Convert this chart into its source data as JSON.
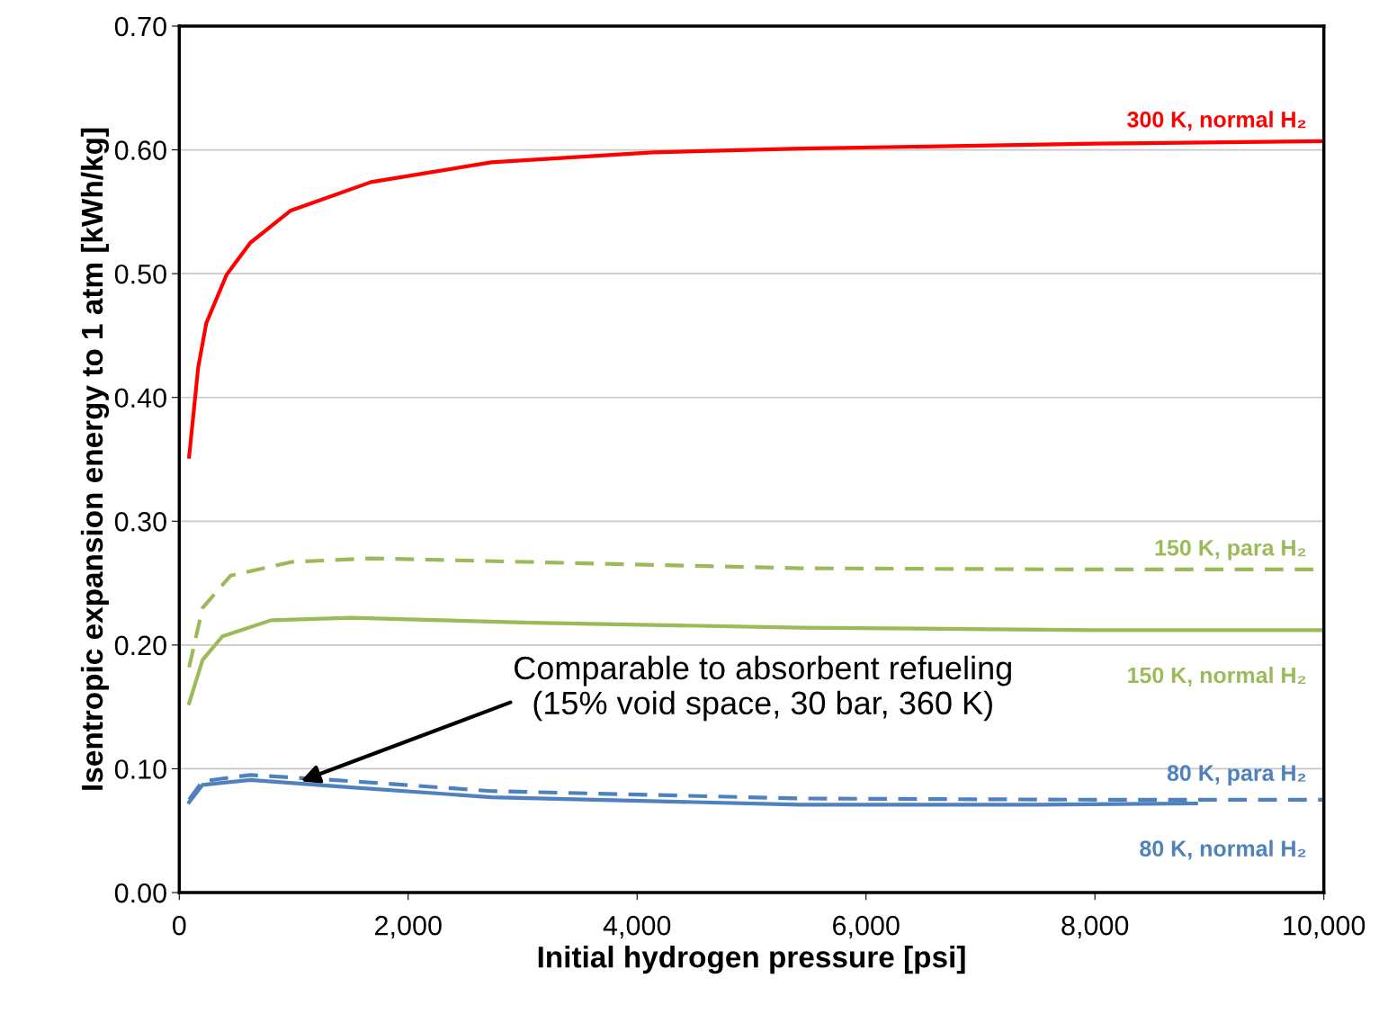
{
  "chart_data": {
    "type": "line",
    "xlabel": "Initial hydrogen pressure [psi]",
    "ylabel": "Isentropic expansion energy to 1 atm [kWh/kg]",
    "xlim": [
      0,
      10000
    ],
    "xticks": [
      {
        "value": 0,
        "label": "0"
      },
      {
        "value": 2000,
        "label": "2,000"
      },
      {
        "value": 4000,
        "label": "4,000"
      },
      {
        "value": 6000,
        "label": "6,000"
      },
      {
        "value": 8000,
        "label": "8,000"
      },
      {
        "value": 10000,
        "label": "10,000"
      }
    ],
    "ylim": [
      0,
      0.7
    ],
    "yticks": [
      {
        "value": 0,
        "label": "0.00"
      },
      {
        "value": 0.1,
        "label": "0.10"
      },
      {
        "value": 0.2,
        "label": "0.20"
      },
      {
        "value": 0.3,
        "label": "0.30"
      },
      {
        "value": 0.4,
        "label": "0.40"
      },
      {
        "value": 0.5,
        "label": "0.50"
      },
      {
        "value": 0.6,
        "label": "0.60"
      },
      {
        "value": 0.7,
        "label": "0.70"
      }
    ],
    "grid": "y",
    "legend": false,
    "marker": "none",
    "series": [
      {
        "name": "300 K, normal H₂",
        "color": "#ff0000",
        "line_style": "solid",
        "x": [
          86,
          165,
          236,
          413,
          621,
          975,
          1675,
          2728,
          4135,
          5425,
          8000,
          10000
        ],
        "values": [
          0.352,
          0.424,
          0.46,
          0.499,
          0.525,
          0.551,
          0.574,
          0.59,
          0.598,
          0.601,
          0.605,
          0.607
        ]
      },
      {
        "name": "150 K, para H₂",
        "color": "#9bbb59",
        "line_style": "dashed",
        "x": [
          86,
          204,
          448,
          975,
          1675,
          3080,
          5425,
          8000,
          10000
        ],
        "values": [
          0.182,
          0.23,
          0.256,
          0.267,
          0.27,
          0.267,
          0.262,
          0.261,
          0.261
        ]
      },
      {
        "name": "150 K, normal H₂",
        "color": "#9bbb59",
        "line_style": "solid",
        "x": [
          86,
          204,
          377,
          802,
          1502,
          3080,
          5425,
          8000,
          10000
        ],
        "values": [
          0.153,
          0.188,
          0.207,
          0.22,
          0.222,
          0.218,
          0.214,
          0.212,
          0.212
        ]
      },
      {
        "name": "80 K, para H₂",
        "color": "#4f81bd",
        "line_style": "dashed",
        "x": [
          86,
          204,
          621,
          1502,
          2728,
          5425,
          8000,
          10000
        ],
        "values": [
          0.075,
          0.09,
          0.095,
          0.09,
          0.082,
          0.076,
          0.075,
          0.075
        ]
      },
      {
        "name": "80 K, normal H₂",
        "color": "#4f81bd",
        "line_style": "solid",
        "x": [
          86,
          204,
          621,
          1502,
          2728,
          5425,
          7500,
          8884
        ],
        "values": [
          0.073,
          0.087,
          0.091,
          0.085,
          0.077,
          0.071,
          0.071,
          0.072
        ]
      }
    ],
    "annotations": [
      {
        "text": "Comparable to absorbent refueling\n(15% void space, 30 bar, 360 K)",
        "x": 1061,
        "y": 0.09
      }
    ]
  }
}
